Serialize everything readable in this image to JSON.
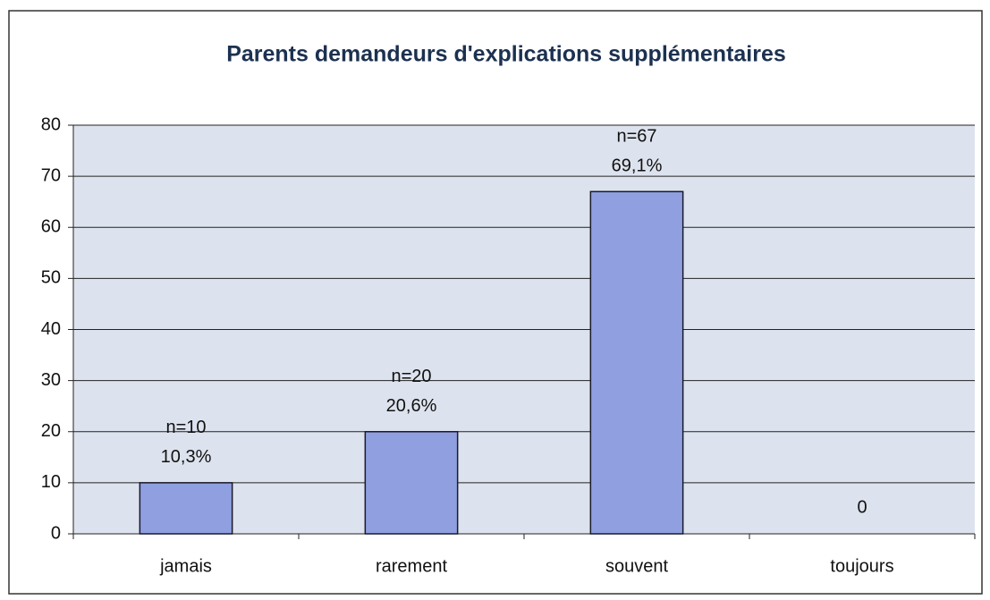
{
  "chart_data": {
    "type": "bar",
    "title": "Parents demandeurs d'explications supplémentaires",
    "categories": [
      "jamais",
      "rarement",
      "souvent",
      "toujours"
    ],
    "values": [
      10,
      20,
      67,
      0
    ],
    "value_labels": [
      "n=10",
      "n=20",
      "n=67",
      "0"
    ],
    "percent_labels": [
      "10,3%",
      "20,6%",
      "69,1%",
      null
    ],
    "color": "#8f9fe0",
    "ylim": [
      0,
      80
    ],
    "yticks": [
      0,
      10,
      20,
      30,
      40,
      50,
      60,
      70,
      80
    ],
    "grid": true
  }
}
